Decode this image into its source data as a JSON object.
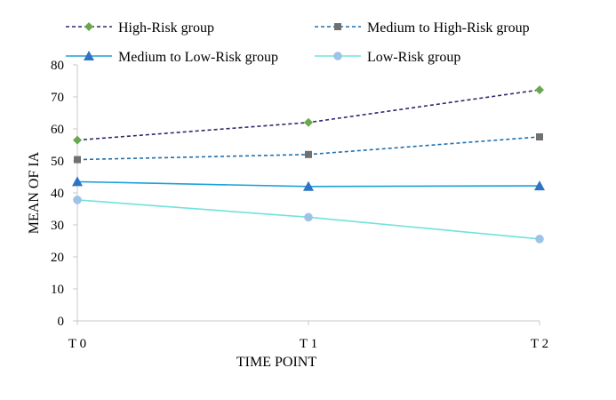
{
  "chart_data": {
    "type": "line",
    "categories": [
      "T 0",
      "T 1",
      "T 2"
    ],
    "xlabel": "TIME POINT",
    "ylabel": "MEAN OF IA",
    "ylim": [
      0,
      80
    ],
    "yticks": [
      0,
      10,
      20,
      30,
      40,
      50,
      60,
      70,
      80
    ],
    "grid": false,
    "legend_position": "top",
    "series": [
      {
        "name": "High-Risk group",
        "values": [
          56.5,
          62,
          72.2
        ],
        "color": "#2b2a6b",
        "marker": "diamond",
        "marker_color": "#6aa84f",
        "dash": true
      },
      {
        "name": "Medium to High-Risk group",
        "values": [
          50.4,
          52,
          57.5
        ],
        "color": "#1f6fad",
        "marker": "square",
        "marker_color": "#707070",
        "dash": true
      },
      {
        "name": "Medium to Low-Risk group",
        "values": [
          43.5,
          42,
          42.2
        ],
        "color": "#1ba1d9",
        "marker": "triangle",
        "marker_color": "#2e74c6",
        "dash": false
      },
      {
        "name": "Low-Risk group",
        "values": [
          37.8,
          32.4,
          25.6
        ],
        "color": "#6fe3db",
        "marker": "circle",
        "marker_color": "#9dc3e6",
        "dash": false
      }
    ]
  }
}
